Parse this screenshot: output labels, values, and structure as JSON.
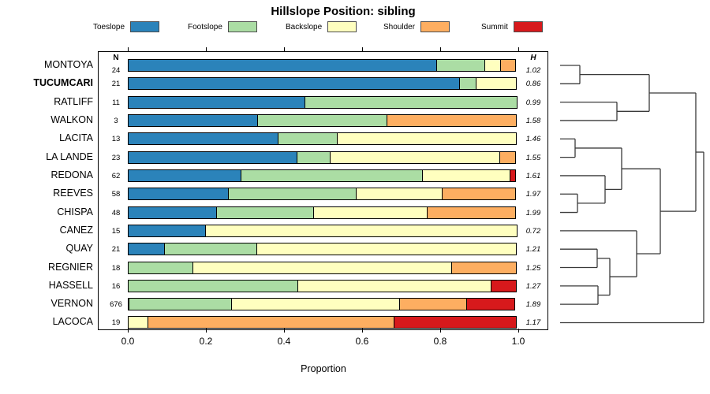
{
  "title": "Hillslope Position: sibling",
  "axis": {
    "xlabel": "Proportion",
    "tick_labels": [
      "0.0",
      "0.2",
      "0.4",
      "0.6",
      "0.8",
      "1.0"
    ]
  },
  "columns": {
    "n_header": "N",
    "h_header": "H"
  },
  "legend": [
    {
      "label": "Toeslope",
      "color": "#2B83BA"
    },
    {
      "label": "Footslope",
      "color": "#ABDDA4"
    },
    {
      "label": "Backslope",
      "color": "#FFFFBF"
    },
    {
      "label": "Shoulder",
      "color": "#FDAE61"
    },
    {
      "label": "Summit",
      "color": "#D7191C"
    }
  ],
  "chart_data": {
    "type": "bar",
    "variant": "horizontal-stacked-proportion with right-side dendrogram",
    "title": "Hillslope Position: sibling",
    "xlabel": "Proportion",
    "xlim": [
      0,
      1
    ],
    "xticks": [
      0,
      0.2,
      0.4,
      0.6,
      0.8,
      1.0
    ],
    "grid": false,
    "legend_position": "top",
    "categories": [
      "MONTOYA",
      "TUCUMCARI",
      "RATLIFF",
      "WALKON",
      "LACITA",
      "LA LANDE",
      "REDONA",
      "REEVES",
      "CHISPA",
      "CANEZ",
      "QUAY",
      "REGNIER",
      "HASSELL",
      "VERNON",
      "LACOCA"
    ],
    "emphasized_category": "TUCUMCARI",
    "n_values": [
      24,
      21,
      11,
      3,
      13,
      23,
      62,
      58,
      48,
      15,
      21,
      18,
      16,
      676,
      19
    ],
    "h_values": [
      "1.02",
      "0.86",
      "0.99",
      "1.58",
      "1.46",
      "1.55",
      "1.61",
      "1.97",
      "1.99",
      "0.72",
      "1.21",
      "1.25",
      "1.27",
      "1.89",
      "1.17"
    ],
    "series": [
      {
        "name": "Toeslope",
        "color": "#2B83BA",
        "values": [
          0.792,
          0.85,
          0.455,
          0.333,
          0.385,
          0.435,
          0.29,
          0.259,
          0.229,
          0.2,
          0.095,
          0,
          0,
          0.004,
          0
        ]
      },
      {
        "name": "Footslope",
        "color": "#ABDDA4",
        "values": [
          0.125,
          0.045,
          0.545,
          0.333,
          0.154,
          0.087,
          0.468,
          0.328,
          0.25,
          0,
          0.238,
          0.167,
          0.437,
          0.265,
          0
        ]
      },
      {
        "name": "Backslope",
        "color": "#FFFFBF",
        "values": [
          0.042,
          0.105,
          0,
          0,
          0.461,
          0.435,
          0.226,
          0.224,
          0.292,
          0.8,
          0.667,
          0.666,
          0.497,
          0.431,
          0.053
        ]
      },
      {
        "name": "Shoulder",
        "color": "#FDAE61",
        "values": [
          0.042,
          0,
          0,
          0.334,
          0,
          0.043,
          0,
          0.189,
          0.229,
          0,
          0,
          0.167,
          0,
          0.175,
          0.631
        ]
      },
      {
        "name": "Summit",
        "color": "#D7191C",
        "values": [
          0,
          0,
          0,
          0,
          0,
          0,
          0.016,
          0,
          0,
          0,
          0,
          0,
          0.066,
          0.125,
          0.316
        ]
      }
    ],
    "dendrogram": {
      "side": "right",
      "leaf_anchor_x": 710,
      "merges": [
        {
          "id": "m1",
          "children": [
            "MONTOYA",
            "TUCUMCARI"
          ],
          "x": 735
        },
        {
          "id": "m2",
          "children": [
            "RATLIFF",
            "WALKON"
          ],
          "x": 782
        },
        {
          "id": "m3",
          "children": [
            "m1",
            "m2"
          ],
          "x": 823
        },
        {
          "id": "m4",
          "children": [
            "LACITA",
            "LA LANDE"
          ],
          "x": 729
        },
        {
          "id": "m5",
          "children": [
            "REEVES",
            "CHISPA"
          ],
          "x": 732
        },
        {
          "id": "m6",
          "children": [
            "REDONA",
            "m5"
          ],
          "x": 767
        },
        {
          "id": "m7",
          "children": [
            "m4",
            "m6"
          ],
          "x": 788
        },
        {
          "id": "m8",
          "children": [
            "QUAY",
            "REGNIER"
          ],
          "x": 757
        },
        {
          "id": "m9",
          "children": [
            "HASSELL",
            "VERNON"
          ],
          "x": 758
        },
        {
          "id": "m10",
          "children": [
            "m8",
            "m9"
          ],
          "x": 773
        },
        {
          "id": "m11",
          "children": [
            "CANEZ",
            "m10"
          ],
          "x": 807
        },
        {
          "id": "m12",
          "children": [
            "m7",
            "m11"
          ],
          "x": 837
        },
        {
          "id": "m13",
          "children": [
            "m3",
            "m12"
          ],
          "x": 882
        },
        {
          "id": "m14",
          "children": [
            "m13",
            "LACOCA"
          ],
          "x": 892
        }
      ]
    }
  }
}
